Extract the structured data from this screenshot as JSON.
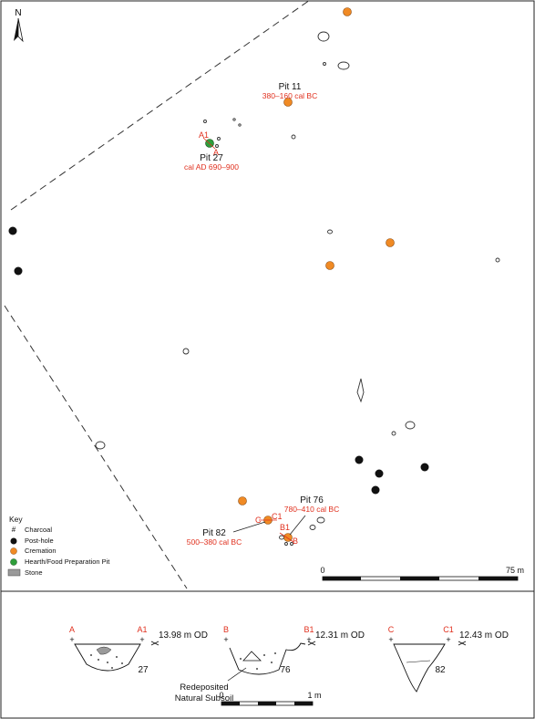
{
  "north": {
    "label": "N"
  },
  "pits": [
    {
      "name": "Pit 11",
      "date": "380–160 cal BC"
    },
    {
      "name": "Pit 27",
      "date": "cal AD 690–900"
    },
    {
      "name": "Pit 76",
      "date": "780–410 cal BC"
    },
    {
      "name": "Pit 82",
      "date": "500–380 cal BC"
    }
  ],
  "section_points": {
    "A1": "A1",
    "A": "A",
    "B1": "B1",
    "B": "B",
    "C": "C",
    "C1": "C1"
  },
  "key": {
    "title": "Key",
    "items": [
      {
        "symbol": "#",
        "label": "Charcoal"
      },
      {
        "symbol": "post-hole",
        "label": "Post-hole",
        "color": "#111111"
      },
      {
        "symbol": "cremation",
        "label": "Cremation",
        "color": "#f08a24"
      },
      {
        "symbol": "hearth",
        "label": "Hearth/Food Preparation Pit",
        "color": "#2e9e3a"
      },
      {
        "symbol": "stone",
        "label": "Stone",
        "color": "#9a9a9a"
      }
    ]
  },
  "map_scale": {
    "start": "0",
    "end": "75 m"
  },
  "sections": [
    {
      "left": "A",
      "right": "A1",
      "od": "13.98 m OD",
      "number": "27"
    },
    {
      "left": "B",
      "right": "B1",
      "od": "12.31 m OD",
      "number": "76"
    },
    {
      "left": "C",
      "right": "C1",
      "od": "12.43 m OD",
      "number": "82"
    }
  ],
  "section_note": {
    "line1": "Redeposited",
    "line2": "Natural Subsoil"
  },
  "section_scale": {
    "start": "0",
    "end": "1 m"
  },
  "colors": {
    "red_label": "#e0301e",
    "cremation": "#f08a24",
    "hearth": "#2e9e3a",
    "posthole": "#111111"
  }
}
